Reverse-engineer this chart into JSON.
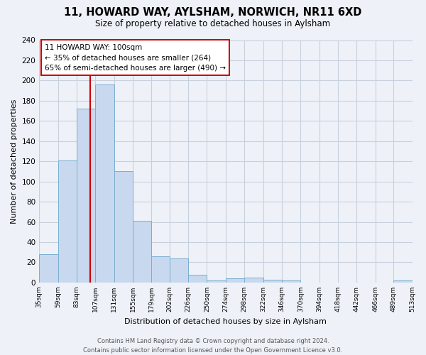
{
  "title": "11, HOWARD WAY, AYLSHAM, NORWICH, NR11 6XD",
  "subtitle": "Size of property relative to detached houses in Aylsham",
  "xlabel": "Distribution of detached houses by size in Aylsham",
  "ylabel": "Number of detached properties",
  "bin_edges": [
    35,
    59,
    83,
    107,
    131,
    155,
    179,
    202,
    226,
    250,
    274,
    298,
    322,
    346,
    370,
    394,
    418,
    442,
    466,
    489,
    513
  ],
  "bin_counts": [
    28,
    121,
    172,
    196,
    110,
    61,
    26,
    24,
    8,
    2,
    4,
    5,
    3,
    2,
    0,
    0,
    0,
    0,
    0,
    2
  ],
  "bar_color": "#c8d8ee",
  "bar_edge_color": "#7aaed0",
  "vline_x": 100,
  "vline_color": "#cc0000",
  "annotation_line1": "11 HOWARD WAY: 100sqm",
  "annotation_line2": "← 35% of detached houses are smaller (264)",
  "annotation_line3": "65% of semi-detached houses are larger (490) →",
  "annotation_box_facecolor": "#ffffff",
  "annotation_box_edgecolor": "#cc0000",
  "ylim": [
    0,
    240
  ],
  "yticks": [
    0,
    20,
    40,
    60,
    80,
    100,
    120,
    140,
    160,
    180,
    200,
    220,
    240
  ],
  "tick_labels": [
    "35sqm",
    "59sqm",
    "83sqm",
    "107sqm",
    "131sqm",
    "155sqm",
    "179sqm",
    "202sqm",
    "226sqm",
    "250sqm",
    "274sqm",
    "298sqm",
    "322sqm",
    "346sqm",
    "370sqm",
    "394sqm",
    "418sqm",
    "442sqm",
    "466sqm",
    "489sqm",
    "513sqm"
  ],
  "footer_line1": "Contains HM Land Registry data © Crown copyright and database right 2024.",
  "footer_line2": "Contains public sector information licensed under the Open Government Licence v3.0.",
  "background_color": "#eef2f8",
  "grid_color": "#c8d0dc"
}
